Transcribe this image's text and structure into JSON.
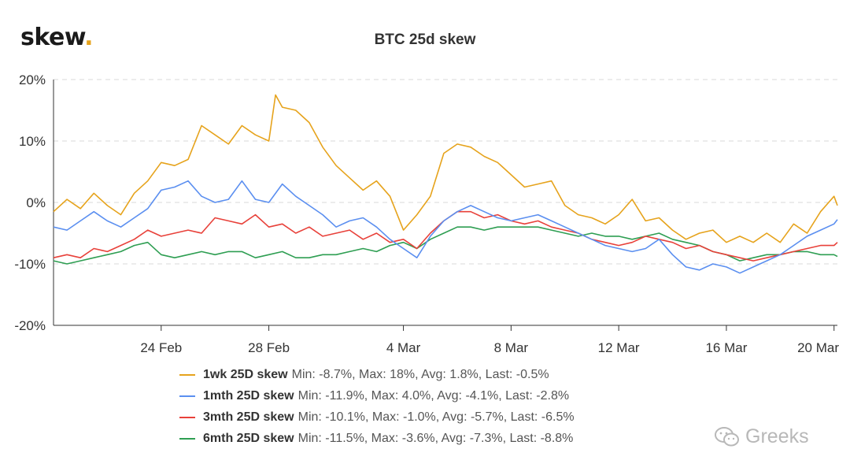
{
  "brand": {
    "name": "skew",
    "dot": "."
  },
  "watermark": {
    "text": "Greeks"
  },
  "chart_data": {
    "type": "line",
    "title": "BTC 25d skew",
    "xlabel": "",
    "ylabel": "",
    "x_range": [
      "2020-02-20",
      "2020-03-20"
    ],
    "x_ticks": [
      {
        "date": "2020-02-24",
        "label": "24 Feb"
      },
      {
        "date": "2020-02-28",
        "label": "28 Feb"
      },
      {
        "date": "2020-03-04",
        "label": "4 Mar"
      },
      {
        "date": "2020-03-08",
        "label": "8 Mar"
      },
      {
        "date": "2020-03-12",
        "label": "12 Mar"
      },
      {
        "date": "2020-03-16",
        "label": "16 Mar"
      },
      {
        "date": "2020-03-20",
        "label": "20 Mar"
      }
    ],
    "ylim": [
      -20,
      20
    ],
    "y_ticks": [
      {
        "value": 20,
        "label": "20%"
      },
      {
        "value": 10,
        "label": "10%"
      },
      {
        "value": 0,
        "label": "0%"
      },
      {
        "value": -10,
        "label": "-10%"
      },
      {
        "value": -20,
        "label": "-20%"
      }
    ],
    "grid": "horizontal dashed",
    "legend_position": "bottom",
    "series": [
      {
        "name": "1wk 25D skew",
        "stats": "Min: -8.7%, Max: 18%, Avg: 1.8%, Last: -0.5%",
        "color": "#e6a31c",
        "points": [
          [
            "2020-02-20 00:00",
            -1.5
          ],
          [
            "2020-02-20 12:00",
            0.5
          ],
          [
            "2020-02-21 00:00",
            -1.0
          ],
          [
            "2020-02-21 12:00",
            1.5
          ],
          [
            "2020-02-22 00:00",
            -0.5
          ],
          [
            "2020-02-22 12:00",
            -2.0
          ],
          [
            "2020-02-23 00:00",
            1.5
          ],
          [
            "2020-02-23 12:00",
            3.5
          ],
          [
            "2020-02-24 00:00",
            6.5
          ],
          [
            "2020-02-24 12:00",
            6.0
          ],
          [
            "2020-02-25 00:00",
            7.0
          ],
          [
            "2020-02-25 12:00",
            12.5
          ],
          [
            "2020-02-26 00:00",
            11.0
          ],
          [
            "2020-02-26 12:00",
            9.5
          ],
          [
            "2020-02-27 00:00",
            12.5
          ],
          [
            "2020-02-27 12:00",
            11.0
          ],
          [
            "2020-02-28 00:00",
            10.0
          ],
          [
            "2020-02-28 06:00",
            17.5
          ],
          [
            "2020-02-28 12:00",
            15.5
          ],
          [
            "2020-02-29 00:00",
            15.0
          ],
          [
            "2020-02-29 12:00",
            13.0
          ],
          [
            "2020-03-01 00:00",
            9.0
          ],
          [
            "2020-03-01 12:00",
            6.0
          ],
          [
            "2020-03-02 00:00",
            4.0
          ],
          [
            "2020-03-02 12:00",
            2.0
          ],
          [
            "2020-03-03 00:00",
            3.5
          ],
          [
            "2020-03-03 12:00",
            1.0
          ],
          [
            "2020-03-04 00:00",
            -4.5
          ],
          [
            "2020-03-04 12:00",
            -2.0
          ],
          [
            "2020-03-05 00:00",
            1.0
          ],
          [
            "2020-03-05 12:00",
            8.0
          ],
          [
            "2020-03-06 00:00",
            9.5
          ],
          [
            "2020-03-06 12:00",
            9.0
          ],
          [
            "2020-03-07 00:00",
            7.5
          ],
          [
            "2020-03-07 12:00",
            6.5
          ],
          [
            "2020-03-08 00:00",
            4.5
          ],
          [
            "2020-03-08 12:00",
            2.5
          ],
          [
            "2020-03-09 00:00",
            3.0
          ],
          [
            "2020-03-09 12:00",
            3.5
          ],
          [
            "2020-03-10 00:00",
            -0.5
          ],
          [
            "2020-03-10 12:00",
            -2.0
          ],
          [
            "2020-03-11 00:00",
            -2.5
          ],
          [
            "2020-03-11 12:00",
            -3.5
          ],
          [
            "2020-03-12 00:00",
            -2.0
          ],
          [
            "2020-03-12 12:00",
            0.5
          ],
          [
            "2020-03-13 00:00",
            -3.0
          ],
          [
            "2020-03-13 12:00",
            -2.5
          ],
          [
            "2020-03-14 00:00",
            -4.5
          ],
          [
            "2020-03-14 12:00",
            -6.0
          ],
          [
            "2020-03-15 00:00",
            -5.0
          ],
          [
            "2020-03-15 12:00",
            -4.5
          ],
          [
            "2020-03-16 00:00",
            -6.5
          ],
          [
            "2020-03-16 12:00",
            -5.5
          ],
          [
            "2020-03-17 00:00",
            -6.5
          ],
          [
            "2020-03-17 12:00",
            -5.0
          ],
          [
            "2020-03-18 00:00",
            -6.5
          ],
          [
            "2020-03-18 12:00",
            -3.5
          ],
          [
            "2020-03-19 00:00",
            -5.0
          ],
          [
            "2020-03-19 12:00",
            -1.5
          ],
          [
            "2020-03-20 00:00",
            1.0
          ],
          [
            "2020-03-20 03:00",
            -0.5
          ]
        ]
      },
      {
        "name": "1mth 25D skew",
        "stats": "Min: -11.9%, Max: 4.0%, Avg: -4.1%, Last: -2.8%",
        "color": "#5b8ff0",
        "points": [
          [
            "2020-02-20 00:00",
            -4.0
          ],
          [
            "2020-02-20 12:00",
            -4.5
          ],
          [
            "2020-02-21 00:00",
            -3.0
          ],
          [
            "2020-02-21 12:00",
            -1.5
          ],
          [
            "2020-02-22 00:00",
            -3.0
          ],
          [
            "2020-02-22 12:00",
            -4.0
          ],
          [
            "2020-02-23 00:00",
            -2.5
          ],
          [
            "2020-02-23 12:00",
            -1.0
          ],
          [
            "2020-02-24 00:00",
            2.0
          ],
          [
            "2020-02-24 12:00",
            2.5
          ],
          [
            "2020-02-25 00:00",
            3.5
          ],
          [
            "2020-02-25 12:00",
            1.0
          ],
          [
            "2020-02-26 00:00",
            0.0
          ],
          [
            "2020-02-26 12:00",
            0.5
          ],
          [
            "2020-02-27 00:00",
            3.5
          ],
          [
            "2020-02-27 12:00",
            0.5
          ],
          [
            "2020-02-28 00:00",
            0.0
          ],
          [
            "2020-02-28 12:00",
            3.0
          ],
          [
            "2020-02-29 00:00",
            1.0
          ],
          [
            "2020-02-29 12:00",
            -0.5
          ],
          [
            "2020-03-01 00:00",
            -2.0
          ],
          [
            "2020-03-01 12:00",
            -4.0
          ],
          [
            "2020-03-02 00:00",
            -3.0
          ],
          [
            "2020-03-02 12:00",
            -2.5
          ],
          [
            "2020-03-03 00:00",
            -4.0
          ],
          [
            "2020-03-03 12:00",
            -6.0
          ],
          [
            "2020-03-04 00:00",
            -7.5
          ],
          [
            "2020-03-04 12:00",
            -9.0
          ],
          [
            "2020-03-05 00:00",
            -5.5
          ],
          [
            "2020-03-05 12:00",
            -3.0
          ],
          [
            "2020-03-06 00:00",
            -1.5
          ],
          [
            "2020-03-06 12:00",
            -0.5
          ],
          [
            "2020-03-07 00:00",
            -1.5
          ],
          [
            "2020-03-07 12:00",
            -2.5
          ],
          [
            "2020-03-08 00:00",
            -3.0
          ],
          [
            "2020-03-08 12:00",
            -2.5
          ],
          [
            "2020-03-09 00:00",
            -2.0
          ],
          [
            "2020-03-09 12:00",
            -3.0
          ],
          [
            "2020-03-10 00:00",
            -4.0
          ],
          [
            "2020-03-10 12:00",
            -5.0
          ],
          [
            "2020-03-11 00:00",
            -6.0
          ],
          [
            "2020-03-11 12:00",
            -7.0
          ],
          [
            "2020-03-12 00:00",
            -7.5
          ],
          [
            "2020-03-12 12:00",
            -8.0
          ],
          [
            "2020-03-13 00:00",
            -7.5
          ],
          [
            "2020-03-13 12:00",
            -6.0
          ],
          [
            "2020-03-14 00:00",
            -8.5
          ],
          [
            "2020-03-14 12:00",
            -10.5
          ],
          [
            "2020-03-15 00:00",
            -11.0
          ],
          [
            "2020-03-15 12:00",
            -10.0
          ],
          [
            "2020-03-16 00:00",
            -10.5
          ],
          [
            "2020-03-16 12:00",
            -11.5
          ],
          [
            "2020-03-17 00:00",
            -10.5
          ],
          [
            "2020-03-17 12:00",
            -9.5
          ],
          [
            "2020-03-18 00:00",
            -8.5
          ],
          [
            "2020-03-18 12:00",
            -7.0
          ],
          [
            "2020-03-19 00:00",
            -5.5
          ],
          [
            "2020-03-19 12:00",
            -4.5
          ],
          [
            "2020-03-20 00:00",
            -3.5
          ],
          [
            "2020-03-20 03:00",
            -2.8
          ]
        ]
      },
      {
        "name": "3mth 25D skew",
        "stats": "Min: -10.1%, Max: -1.0%, Avg: -5.7%, Last: -6.5%",
        "color": "#e8413a",
        "points": [
          [
            "2020-02-20 00:00",
            -9.0
          ],
          [
            "2020-02-20 12:00",
            -8.5
          ],
          [
            "2020-02-21 00:00",
            -9.0
          ],
          [
            "2020-02-21 12:00",
            -7.5
          ],
          [
            "2020-02-22 00:00",
            -8.0
          ],
          [
            "2020-02-22 12:00",
            -7.0
          ],
          [
            "2020-02-23 00:00",
            -6.0
          ],
          [
            "2020-02-23 12:00",
            -4.5
          ],
          [
            "2020-02-24 00:00",
            -5.5
          ],
          [
            "2020-02-24 12:00",
            -5.0
          ],
          [
            "2020-02-25 00:00",
            -4.5
          ],
          [
            "2020-02-25 12:00",
            -5.0
          ],
          [
            "2020-02-26 00:00",
            -2.5
          ],
          [
            "2020-02-26 12:00",
            -3.0
          ],
          [
            "2020-02-27 00:00",
            -3.5
          ],
          [
            "2020-02-27 12:00",
            -2.0
          ],
          [
            "2020-02-28 00:00",
            -4.0
          ],
          [
            "2020-02-28 12:00",
            -3.5
          ],
          [
            "2020-02-29 00:00",
            -5.0
          ],
          [
            "2020-02-29 12:00",
            -4.0
          ],
          [
            "2020-03-01 00:00",
            -5.5
          ],
          [
            "2020-03-01 12:00",
            -5.0
          ],
          [
            "2020-03-02 00:00",
            -4.5
          ],
          [
            "2020-03-02 12:00",
            -6.0
          ],
          [
            "2020-03-03 00:00",
            -5.0
          ],
          [
            "2020-03-03 12:00",
            -6.5
          ],
          [
            "2020-03-04 00:00",
            -6.0
          ],
          [
            "2020-03-04 12:00",
            -7.5
          ],
          [
            "2020-03-05 00:00",
            -5.0
          ],
          [
            "2020-03-05 12:00",
            -3.0
          ],
          [
            "2020-03-06 00:00",
            -1.5
          ],
          [
            "2020-03-06 12:00",
            -1.5
          ],
          [
            "2020-03-07 00:00",
            -2.5
          ],
          [
            "2020-03-07 12:00",
            -2.0
          ],
          [
            "2020-03-08 00:00",
            -3.0
          ],
          [
            "2020-03-08 12:00",
            -3.5
          ],
          [
            "2020-03-09 00:00",
            -3.0
          ],
          [
            "2020-03-09 12:00",
            -4.0
          ],
          [
            "2020-03-10 00:00",
            -4.5
          ],
          [
            "2020-03-10 12:00",
            -5.0
          ],
          [
            "2020-03-11 00:00",
            -6.0
          ],
          [
            "2020-03-11 12:00",
            -6.5
          ],
          [
            "2020-03-12 00:00",
            -7.0
          ],
          [
            "2020-03-12 12:00",
            -6.5
          ],
          [
            "2020-03-13 00:00",
            -5.5
          ],
          [
            "2020-03-13 12:00",
            -6.0
          ],
          [
            "2020-03-14 00:00",
            -6.5
          ],
          [
            "2020-03-14 12:00",
            -7.5
          ],
          [
            "2020-03-15 00:00",
            -7.0
          ],
          [
            "2020-03-15 12:00",
            -8.0
          ],
          [
            "2020-03-16 00:00",
            -8.5
          ],
          [
            "2020-03-16 12:00",
            -9.0
          ],
          [
            "2020-03-17 00:00",
            -9.5
          ],
          [
            "2020-03-17 12:00",
            -9.0
          ],
          [
            "2020-03-18 00:00",
            -8.5
          ],
          [
            "2020-03-18 12:00",
            -8.0
          ],
          [
            "2020-03-19 00:00",
            -7.5
          ],
          [
            "2020-03-19 12:00",
            -7.0
          ],
          [
            "2020-03-20 00:00",
            -7.0
          ],
          [
            "2020-03-20 03:00",
            -6.5
          ]
        ]
      },
      {
        "name": "6mth 25D skew",
        "stats": "Min: -11.5%, Max: -3.6%, Avg: -7.3%, Last: -8.8%",
        "color": "#2e9e52",
        "points": [
          [
            "2020-02-20 00:00",
            -9.5
          ],
          [
            "2020-02-20 12:00",
            -10.0
          ],
          [
            "2020-02-21 00:00",
            -9.5
          ],
          [
            "2020-02-21 12:00",
            -9.0
          ],
          [
            "2020-02-22 00:00",
            -8.5
          ],
          [
            "2020-02-22 12:00",
            -8.0
          ],
          [
            "2020-02-23 00:00",
            -7.0
          ],
          [
            "2020-02-23 12:00",
            -6.5
          ],
          [
            "2020-02-24 00:00",
            -8.5
          ],
          [
            "2020-02-24 12:00",
            -9.0
          ],
          [
            "2020-02-25 00:00",
            -8.5
          ],
          [
            "2020-02-25 12:00",
            -8.0
          ],
          [
            "2020-02-26 00:00",
            -8.5
          ],
          [
            "2020-02-26 12:00",
            -8.0
          ],
          [
            "2020-02-27 00:00",
            -8.0
          ],
          [
            "2020-02-27 12:00",
            -9.0
          ],
          [
            "2020-02-28 00:00",
            -8.5
          ],
          [
            "2020-02-28 12:00",
            -8.0
          ],
          [
            "2020-02-29 00:00",
            -9.0
          ],
          [
            "2020-02-29 12:00",
            -9.0
          ],
          [
            "2020-03-01 00:00",
            -8.5
          ],
          [
            "2020-03-01 12:00",
            -8.5
          ],
          [
            "2020-03-02 00:00",
            -8.0
          ],
          [
            "2020-03-02 12:00",
            -7.5
          ],
          [
            "2020-03-03 00:00",
            -8.0
          ],
          [
            "2020-03-03 12:00",
            -7.0
          ],
          [
            "2020-03-04 00:00",
            -6.5
          ],
          [
            "2020-03-04 12:00",
            -7.5
          ],
          [
            "2020-03-05 00:00",
            -6.0
          ],
          [
            "2020-03-05 12:00",
            -5.0
          ],
          [
            "2020-03-06 00:00",
            -4.0
          ],
          [
            "2020-03-06 12:00",
            -4.0
          ],
          [
            "2020-03-07 00:00",
            -4.5
          ],
          [
            "2020-03-07 12:00",
            -4.0
          ],
          [
            "2020-03-08 00:00",
            -4.0
          ],
          [
            "2020-03-08 12:00",
            -4.0
          ],
          [
            "2020-03-09 00:00",
            -4.0
          ],
          [
            "2020-03-09 12:00",
            -4.5
          ],
          [
            "2020-03-10 00:00",
            -5.0
          ],
          [
            "2020-03-10 12:00",
            -5.5
          ],
          [
            "2020-03-11 00:00",
            -5.0
          ],
          [
            "2020-03-11 12:00",
            -5.5
          ],
          [
            "2020-03-12 00:00",
            -5.5
          ],
          [
            "2020-03-12 12:00",
            -6.0
          ],
          [
            "2020-03-13 00:00",
            -5.5
          ],
          [
            "2020-03-13 12:00",
            -5.0
          ],
          [
            "2020-03-14 00:00",
            -6.0
          ],
          [
            "2020-03-14 12:00",
            -6.5
          ],
          [
            "2020-03-15 00:00",
            -7.0
          ],
          [
            "2020-03-15 12:00",
            -8.0
          ],
          [
            "2020-03-16 00:00",
            -8.5
          ],
          [
            "2020-03-16 12:00",
            -9.5
          ],
          [
            "2020-03-17 00:00",
            -9.0
          ],
          [
            "2020-03-17 12:00",
            -8.5
          ],
          [
            "2020-03-18 00:00",
            -8.5
          ],
          [
            "2020-03-18 12:00",
            -8.0
          ],
          [
            "2020-03-19 00:00",
            -8.0
          ],
          [
            "2020-03-19 12:00",
            -8.5
          ],
          [
            "2020-03-20 00:00",
            -8.5
          ],
          [
            "2020-03-20 03:00",
            -8.8
          ]
        ]
      }
    ]
  }
}
